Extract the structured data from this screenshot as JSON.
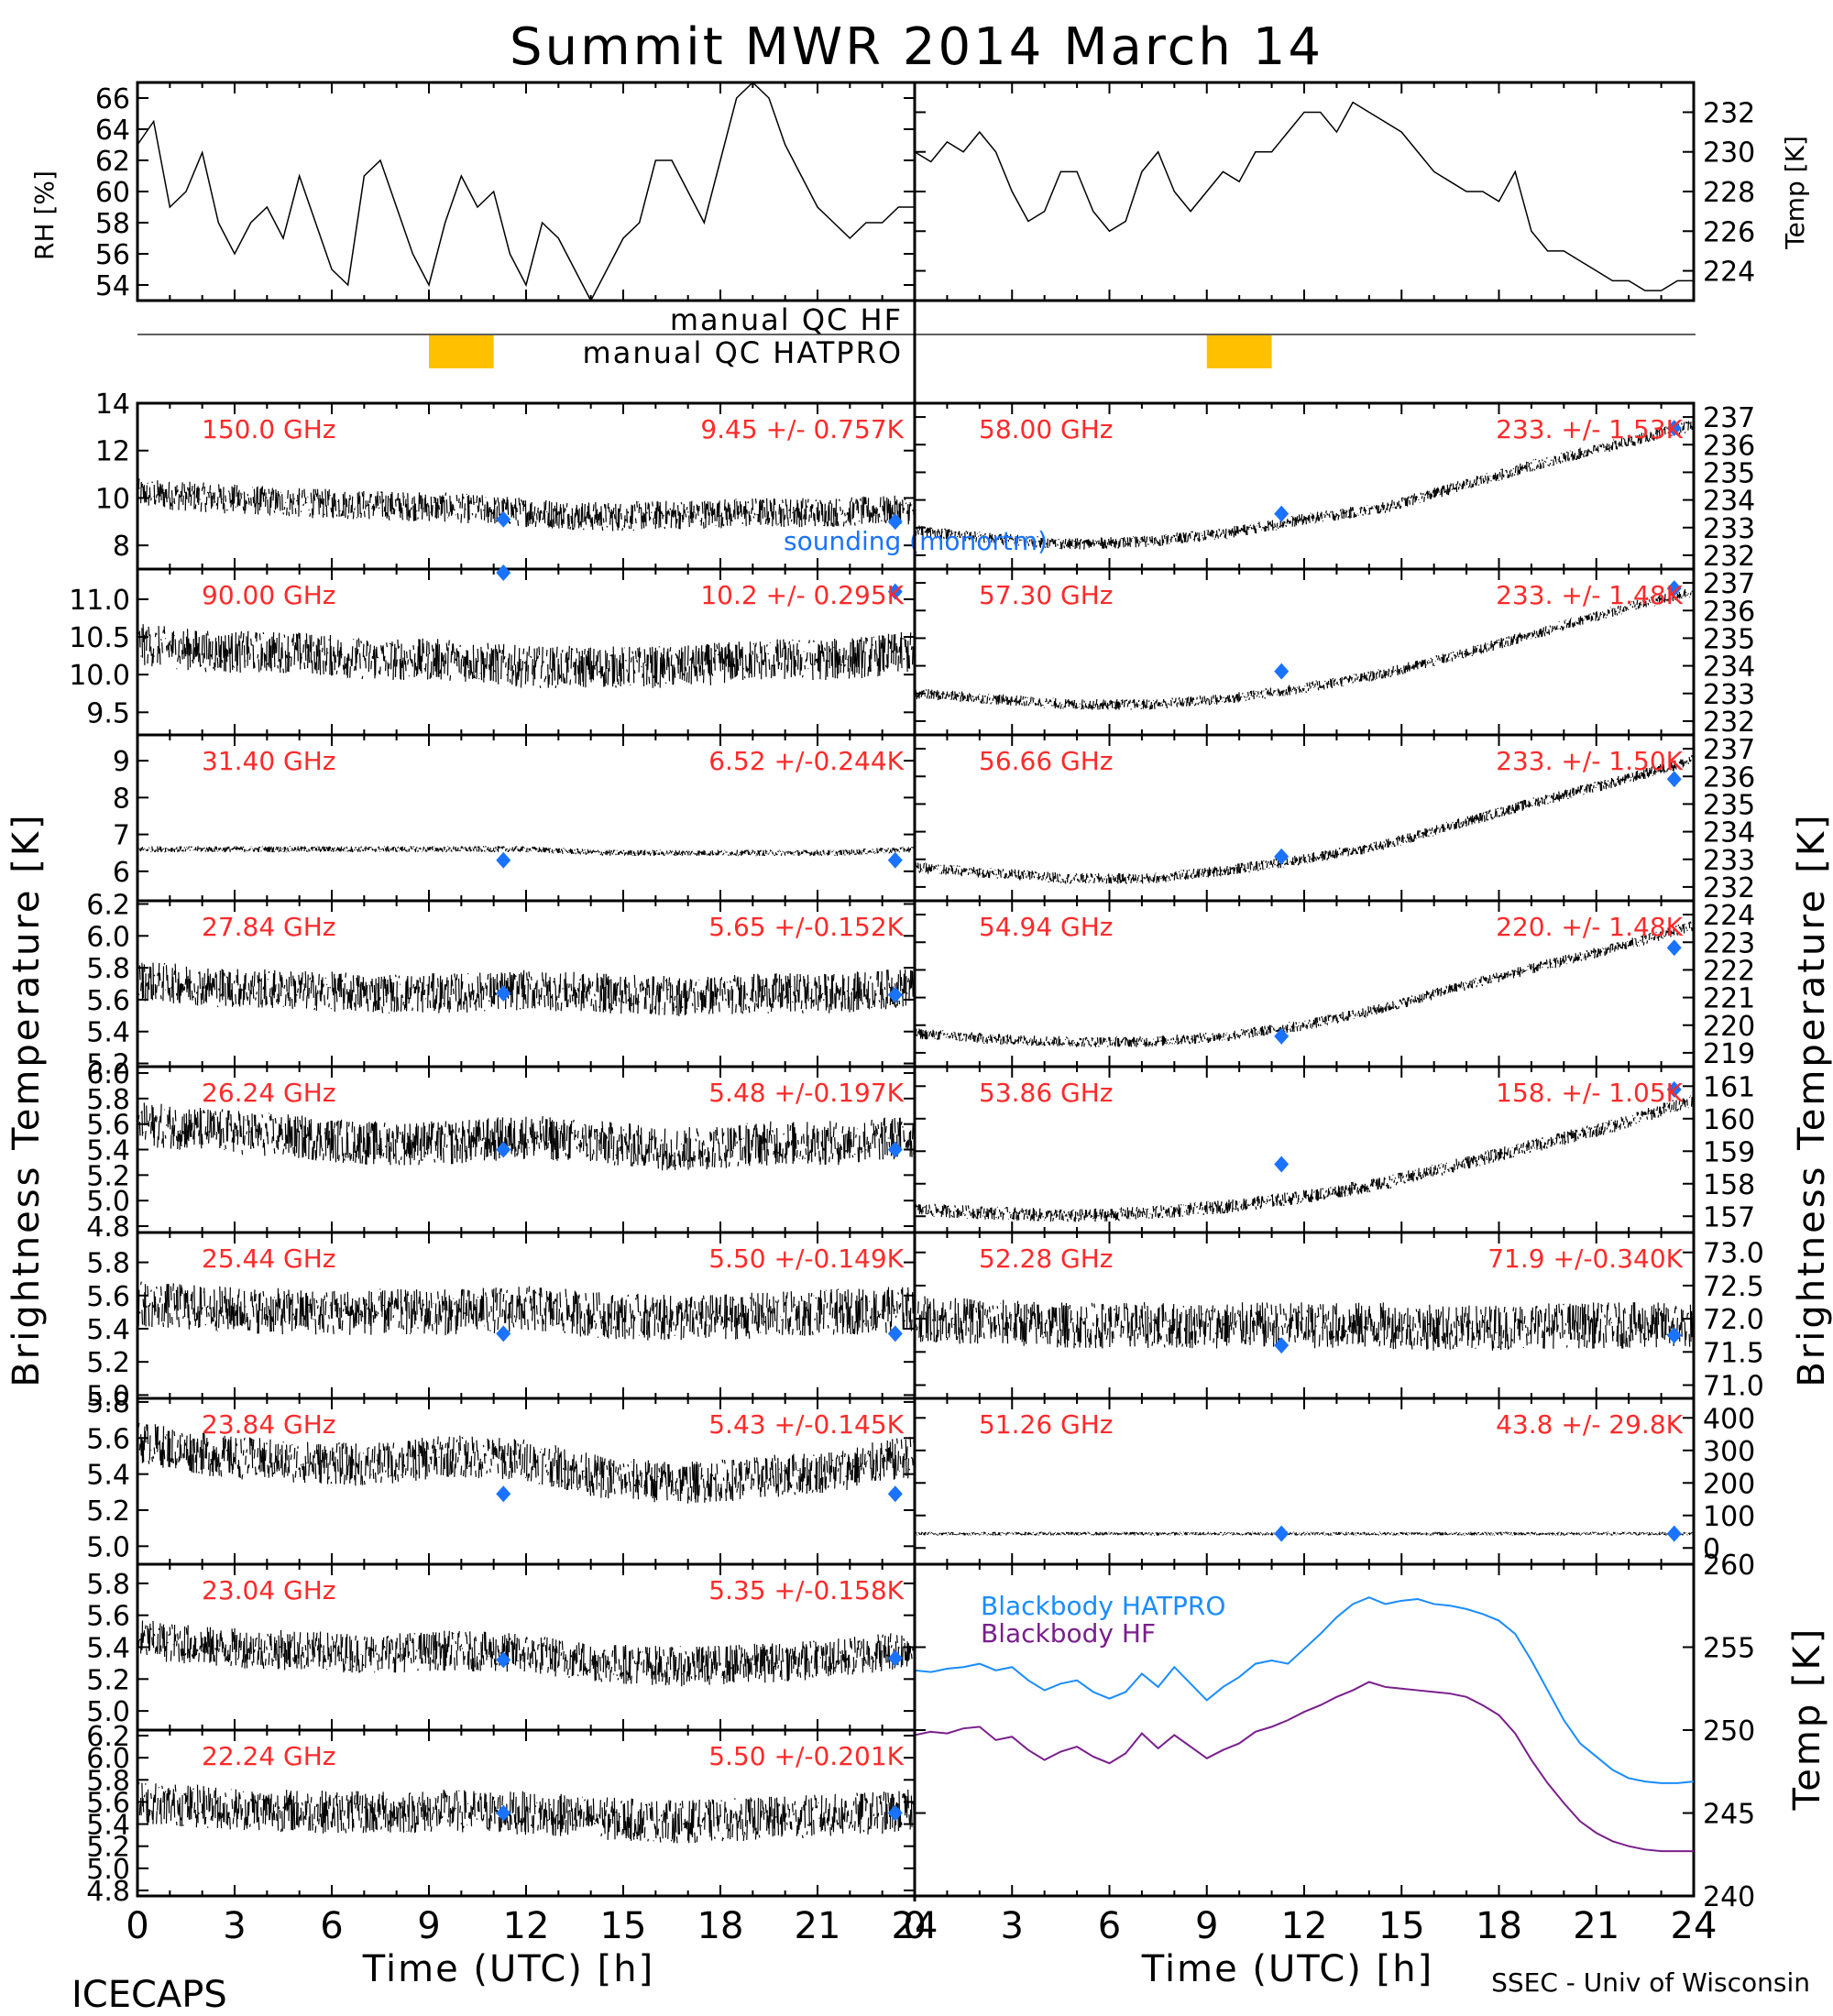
{
  "title": "Summit MWR 2014 March 14",
  "footer": {
    "left": "ICECAPS",
    "right": "SSEC - Univ of Wisconsin"
  },
  "labels": {
    "brightness_temperature": "Brightness Temperature [K]",
    "time_axis": "Time (UTC) [h]",
    "rh_axis": "RH [%]",
    "temp_axis": "Temp [K]",
    "manual_qc_hf": "manual QC HF",
    "manual_qc_hatpro": "manual QC HATPRO",
    "sounding_legend": "sounding (monortm)"
  },
  "colors": {
    "data": "#000000",
    "annotation": "#ff2a2a",
    "sounding": "#1a73ff",
    "qc_flag": "#ffc000",
    "blackbody_hatpro": "#1a8cff",
    "blackbody_hf": "#7a1f8c"
  },
  "chart_data": [
    {
      "id": "rh",
      "type": "line",
      "column": "left",
      "ylabel": "RH [%]",
      "ylim": [
        53,
        67
      ],
      "xlim": [
        0,
        24
      ],
      "yticks": [
        "54",
        "56",
        "58",
        "60",
        "62",
        "64",
        "66"
      ],
      "x": [
        0,
        0.5,
        1,
        1.5,
        2,
        2.5,
        3,
        3.5,
        4,
        4.5,
        5,
        5.5,
        6,
        6.5,
        7,
        7.5,
        8,
        8.5,
        9,
        9.5,
        10,
        10.5,
        11,
        11.5,
        12,
        12.5,
        13,
        13.5,
        14,
        14.5,
        15,
        15.5,
        16,
        16.5,
        17,
        17.5,
        18,
        18.5,
        19,
        19.5,
        20,
        20.5,
        21,
        21.5,
        22,
        22.5,
        23,
        23.5,
        24
      ],
      "y": [
        63,
        64.5,
        59,
        60,
        62.5,
        58,
        56,
        58,
        59,
        57,
        61,
        58,
        55,
        54,
        61,
        62,
        59,
        56,
        54,
        58,
        61,
        59,
        60,
        56,
        54,
        58,
        57,
        55,
        53,
        55,
        57,
        58,
        62,
        62,
        60,
        58,
        62,
        66,
        67,
        66,
        63,
        61,
        59,
        58,
        57,
        58,
        58,
        59,
        59
      ]
    },
    {
      "id": "air_temp",
      "type": "line",
      "column": "right",
      "ylabel": "Temp [K]",
      "ylim": [
        222.5,
        233.5
      ],
      "xlim": [
        0,
        24
      ],
      "yticks": [
        "224",
        "226",
        "228",
        "230",
        "232"
      ],
      "x": [
        0,
        0.5,
        1,
        1.5,
        2,
        2.5,
        3,
        3.5,
        4,
        4.5,
        5,
        5.5,
        6,
        6.5,
        7,
        7.5,
        8,
        8.5,
        9,
        9.5,
        10,
        10.5,
        11,
        11.5,
        12,
        12.5,
        13,
        13.5,
        14,
        14.5,
        15,
        15.5,
        16,
        16.5,
        17,
        17.5,
        18,
        18.5,
        19,
        19.5,
        20,
        20.5,
        21,
        21.5,
        22,
        22.5,
        23,
        23.5,
        24
      ],
      "y": [
        230,
        229.5,
        230.5,
        230,
        231,
        230,
        228,
        226.5,
        227,
        229,
        229,
        227,
        226,
        226.5,
        229,
        230,
        228,
        227,
        228,
        229,
        228.5,
        230,
        230,
        231,
        232,
        232,
        231,
        232.5,
        232,
        231.5,
        231,
        230,
        229,
        228.5,
        228,
        228,
        227.5,
        229,
        226,
        225,
        225,
        224.5,
        224,
        223.5,
        223.5,
        223,
        223,
        223.5,
        223.5
      ]
    },
    {
      "id": "qc_hf",
      "type": "bar",
      "label": "manual QC HF",
      "flags": []
    },
    {
      "id": "qc_hatpro",
      "type": "bar",
      "label": "manual QC HATPRO",
      "flags": [
        {
          "start": 9,
          "end": 11
        },
        {
          "start": 9,
          "end": 11
        }
      ]
    },
    {
      "id": "l150",
      "type": "scatter",
      "column": "left",
      "channel": "150.0 GHz",
      "stat": "9.45 +/- 0.757K",
      "ylim": [
        7,
        14
      ],
      "yticks": [
        "8",
        "10",
        "12",
        "14"
      ],
      "base": [
        10.2,
        10,
        9.8,
        9.7,
        9.6,
        9.4,
        9.2,
        9.3,
        9.4,
        9.4,
        9.5
      ],
      "noise": 0.9,
      "sounding": [
        {
          "x": 11.3,
          "y": 9.1
        },
        {
          "x": 23.4,
          "y": 9.0
        }
      ]
    },
    {
      "id": "l90",
      "type": "scatter",
      "column": "left",
      "channel": "90.00 GHz",
      "stat": "10.2 +/- 0.295K",
      "ylim": [
        9.2,
        11.4
      ],
      "yticks": [
        "9.5",
        "10.0",
        "10.5",
        "11.0"
      ],
      "base": [
        10.4,
        10.3,
        10.3,
        10.2,
        10.2,
        10.1,
        10.1,
        10.1,
        10.2,
        10.2,
        10.3
      ],
      "noise": 0.4,
      "sounding": [
        {
          "x": 11.3,
          "y": 11.4
        },
        {
          "x": 23.4,
          "y": 11.1
        }
      ]
    },
    {
      "id": "l31",
      "type": "scatter",
      "column": "left",
      "channel": "31.40 GHz",
      "stat": "6.52 +/-0.244K",
      "ylim": [
        5.2,
        9.7
      ],
      "yticks": [
        "6",
        "7",
        "8",
        "9"
      ],
      "base": [
        6.6,
        6.6,
        6.6,
        6.6,
        6.6,
        6.6,
        6.5,
        6.5,
        6.5,
        6.5,
        6.6
      ],
      "noise": 0.12,
      "sounding": [
        {
          "x": 11.3,
          "y": 6.3
        },
        {
          "x": 23.4,
          "y": 6.3
        }
      ]
    },
    {
      "id": "l27",
      "type": "scatter",
      "column": "left",
      "channel": "27.84 GHz",
      "stat": "5.65 +/-0.152K",
      "ylim": [
        5.18,
        6.22
      ],
      "yticks": [
        "5.2",
        "5.4",
        "5.6",
        "5.8",
        "6.0",
        "6.2"
      ],
      "base": [
        5.72,
        5.68,
        5.66,
        5.64,
        5.64,
        5.66,
        5.64,
        5.62,
        5.64,
        5.64,
        5.68
      ],
      "noise": 0.18,
      "sounding": [
        {
          "x": 11.3,
          "y": 5.64
        },
        {
          "x": 23.4,
          "y": 5.63
        }
      ]
    },
    {
      "id": "l26",
      "type": "scatter",
      "column": "left",
      "channel": "26.24 GHz",
      "stat": "5.48 +/-0.197K",
      "ylim": [
        4.75,
        6.05
      ],
      "yticks": [
        "4.8",
        "5.0",
        "5.2",
        "5.4",
        "5.6",
        "5.8",
        "6.0"
      ],
      "base": [
        5.6,
        5.55,
        5.5,
        5.45,
        5.45,
        5.5,
        5.45,
        5.4,
        5.45,
        5.45,
        5.5
      ],
      "noise": 0.25,
      "sounding": [
        {
          "x": 11.3,
          "y": 5.4
        },
        {
          "x": 23.4,
          "y": 5.4
        }
      ]
    },
    {
      "id": "l25",
      "type": "scatter",
      "column": "left",
      "channel": "25.44 GHz",
      "stat": "5.50 +/-0.149K",
      "ylim": [
        4.98,
        5.98
      ],
      "yticks": [
        "5.0",
        "5.2",
        "5.4",
        "5.6",
        "5.8"
      ],
      "base": [
        5.55,
        5.52,
        5.5,
        5.5,
        5.5,
        5.52,
        5.48,
        5.46,
        5.48,
        5.5,
        5.52
      ],
      "noise": 0.2,
      "sounding": [
        {
          "x": 11.3,
          "y": 5.37
        },
        {
          "x": 23.4,
          "y": 5.37
        }
      ]
    },
    {
      "id": "l23",
      "type": "scatter",
      "column": "left",
      "channel": "23.84 GHz",
      "stat": "5.43 +/-0.145K",
      "ylim": [
        4.9,
        5.82
      ],
      "yticks": [
        "5.0",
        "5.2",
        "5.4",
        "5.6",
        "5.8"
      ],
      "base": [
        5.58,
        5.5,
        5.47,
        5.45,
        5.5,
        5.48,
        5.38,
        5.35,
        5.38,
        5.42,
        5.5
      ],
      "noise": 0.17,
      "sounding": [
        {
          "x": 11.3,
          "y": 5.29
        },
        {
          "x": 23.4,
          "y": 5.29
        }
      ]
    },
    {
      "id": "l23b",
      "type": "scatter",
      "column": "left",
      "channel": "23.04 GHz",
      "stat": "5.35 +/-0.158K",
      "ylim": [
        4.88,
        5.92
      ],
      "yticks": [
        "5.0",
        "5.2",
        "5.4",
        "5.6",
        "5.8"
      ],
      "base": [
        5.45,
        5.4,
        5.38,
        5.36,
        5.38,
        5.36,
        5.3,
        5.28,
        5.3,
        5.33,
        5.4
      ],
      "noise": 0.18,
      "sounding": [
        {
          "x": 11.3,
          "y": 5.32
        },
        {
          "x": 23.4,
          "y": 5.33
        }
      ]
    },
    {
      "id": "l22",
      "type": "scatter",
      "column": "left",
      "channel": "22.24 GHz",
      "stat": "5.50 +/-0.201K",
      "ylim": [
        4.75,
        6.25
      ],
      "yticks": [
        "4.8",
        "5.0",
        "5.2",
        "5.4",
        "5.6",
        "5.8",
        "6.0",
        "6.2"
      ],
      "base": [
        5.6,
        5.55,
        5.52,
        5.5,
        5.52,
        5.5,
        5.45,
        5.42,
        5.45,
        5.48,
        5.52
      ],
      "noise": 0.28,
      "sounding": [
        {
          "x": 11.3,
          "y": 5.5
        },
        {
          "x": 23.4,
          "y": 5.5
        }
      ]
    },
    {
      "id": "r58",
      "type": "scatter",
      "column": "right",
      "channel": "58.00 GHz",
      "stat": "233. +/- 1.53K",
      "ylim": [
        231.5,
        237.5
      ],
      "yticks": [
        "232",
        "233",
        "234",
        "235",
        "236",
        "237"
      ],
      "base": [
        232.9,
        232.6,
        232.4,
        232.5,
        232.8,
        233.3,
        233.7,
        234.5,
        235.3,
        236,
        236.7
      ],
      "noise": 0.3,
      "sounding": [
        {
          "x": 11.3,
          "y": 233.5
        },
        {
          "x": 23.4,
          "y": 236.6
        }
      ]
    },
    {
      "id": "r57",
      "type": "scatter",
      "column": "right",
      "channel": "57.30 GHz",
      "stat": "233. +/- 1.48K",
      "ylim": [
        231.5,
        237.5
      ],
      "yticks": [
        "232",
        "233",
        "234",
        "235",
        "236",
        "237"
      ],
      "base": [
        233,
        232.8,
        232.6,
        232.6,
        232.8,
        233.2,
        233.7,
        234.4,
        235.2,
        236,
        236.7
      ],
      "noise": 0.28,
      "sounding": [
        {
          "x": 11.3,
          "y": 233.8
        },
        {
          "x": 23.4,
          "y": 236.8
        }
      ]
    },
    {
      "id": "r56",
      "type": "scatter",
      "column": "right",
      "channel": "56.66 GHz",
      "stat": "233. +/- 1.50K",
      "ylim": [
        231.5,
        237.5
      ],
      "yticks": [
        "232",
        "233",
        "234",
        "235",
        "236",
        "237"
      ],
      "base": [
        232.7,
        232.5,
        232.3,
        232.3,
        232.6,
        233,
        233.5,
        234.3,
        235.1,
        235.8,
        236.6
      ],
      "noise": 0.28,
      "sounding": [
        {
          "x": 11.3,
          "y": 233.1
        },
        {
          "x": 23.4,
          "y": 235.9
        }
      ]
    },
    {
      "id": "r54",
      "type": "scatter",
      "column": "right",
      "channel": "54.94 GHz",
      "stat": "220. +/- 1.48K",
      "ylim": [
        218.5,
        224.5
      ],
      "yticks": [
        "219",
        "220",
        "221",
        "222",
        "223",
        "224"
      ],
      "base": [
        219.7,
        219.5,
        219.4,
        219.4,
        219.6,
        220,
        220.6,
        221.4,
        222.1,
        222.8,
        223.6
      ],
      "noise": 0.28,
      "sounding": [
        {
          "x": 11.3,
          "y": 219.6
        },
        {
          "x": 23.4,
          "y": 222.8
        }
      ]
    },
    {
      "id": "r53",
      "type": "scatter",
      "column": "right",
      "channel": "53.86 GHz",
      "stat": "158. +/- 1.05K",
      "ylim": [
        156.5,
        161.6
      ],
      "yticks": [
        "157",
        "158",
        "159",
        "160",
        "161"
      ],
      "base": [
        157.2,
        157.1,
        157,
        157.1,
        157.3,
        157.6,
        158,
        158.6,
        159.2,
        159.8,
        160.6
      ],
      "noise": 0.3,
      "sounding": [
        {
          "x": 11.3,
          "y": 158.6
        },
        {
          "x": 23.4,
          "y": 160.9
        }
      ]
    },
    {
      "id": "r52",
      "type": "scatter",
      "column": "right",
      "channel": "52.28 GHz",
      "stat": "71.9 +/-0.340K",
      "ylim": [
        70.8,
        73.3
      ],
      "yticks": [
        "71.0",
        "71.5",
        "72.0",
        "72.5",
        "73.0"
      ],
      "base": [
        72,
        71.95,
        71.9,
        71.9,
        71.9,
        71.9,
        71.9,
        71.85,
        71.9,
        71.9,
        71.9
      ],
      "noise": 0.5,
      "sounding": [
        {
          "x": 11.3,
          "y": 71.6
        },
        {
          "x": 23.4,
          "y": 71.75
        }
      ]
    },
    {
      "id": "r51",
      "type": "scatter",
      "column": "right",
      "channel": "51.26 GHz",
      "stat": "43.8 +/- 29.8K",
      "ylim": [
        -50,
        460
      ],
      "yticks": [
        "0",
        "100",
        "200",
        "300",
        "400"
      ],
      "base": [
        44,
        44,
        44,
        44,
        44,
        44,
        44,
        44,
        44,
        44,
        44
      ],
      "noise": 8,
      "sounding": [
        {
          "x": 11.3,
          "y": 44
        },
        {
          "x": 23.4,
          "y": 44
        }
      ]
    },
    {
      "id": "blackbody",
      "type": "line",
      "column": "right",
      "ylabel": "Temp [K]",
      "ylim": [
        240,
        260
      ],
      "xlim": [
        0,
        24
      ],
      "yticks": [
        "240",
        "245",
        "250",
        "255",
        "260"
      ],
      "x": [
        0,
        0.5,
        1,
        1.5,
        2,
        2.5,
        3,
        3.5,
        4,
        4.5,
        5,
        5.5,
        6,
        6.5,
        7,
        7.5,
        8,
        8.5,
        9,
        9.5,
        10,
        10.5,
        11,
        11.5,
        12,
        12.5,
        13,
        13.5,
        14,
        14.5,
        15,
        15.5,
        16,
        16.5,
        17,
        17.5,
        18,
        18.5,
        19,
        19.5,
        20,
        20.5,
        21,
        21.5,
        22,
        22.5,
        23,
        23.5,
        24
      ],
      "series": [
        {
          "name": "Blackbody HATPRO",
          "values": [
            253.6,
            253.5,
            253.7,
            253.8,
            254,
            253.6,
            253.8,
            253,
            252.4,
            252.8,
            253,
            252.3,
            251.9,
            252.3,
            253.4,
            252.6,
            253.8,
            252.8,
            251.8,
            252.6,
            253.2,
            254,
            254.2,
            254,
            254.9,
            255.8,
            256.8,
            257.6,
            258,
            257.6,
            257.8,
            257.9,
            257.6,
            257.5,
            257.3,
            257,
            256.6,
            255.8,
            254.2,
            252.4,
            250.6,
            249.2,
            248.4,
            247.6,
            247.1,
            246.9,
            246.8,
            246.8,
            246.9
          ]
        },
        {
          "name": "Blackbody HF",
          "values": [
            249.7,
            249.9,
            249.8,
            250.1,
            250.2,
            249.4,
            249.6,
            248.8,
            248.2,
            248.7,
            249,
            248.4,
            248,
            248.6,
            249.8,
            248.9,
            249.7,
            249,
            248.3,
            248.8,
            249.2,
            249.9,
            250.2,
            250.6,
            251.1,
            251.5,
            252,
            252.4,
            252.9,
            252.6,
            252.5,
            252.4,
            252.3,
            252.2,
            252,
            251.5,
            250.9,
            249.8,
            248.2,
            246.8,
            245.6,
            244.5,
            243.8,
            243.3,
            243,
            242.8,
            242.7,
            242.7,
            242.7
          ]
        }
      ]
    }
  ],
  "x_axis": {
    "ticks": [
      "0",
      "3",
      "6",
      "9",
      "12",
      "15",
      "18",
      "21",
      "24"
    ]
  }
}
